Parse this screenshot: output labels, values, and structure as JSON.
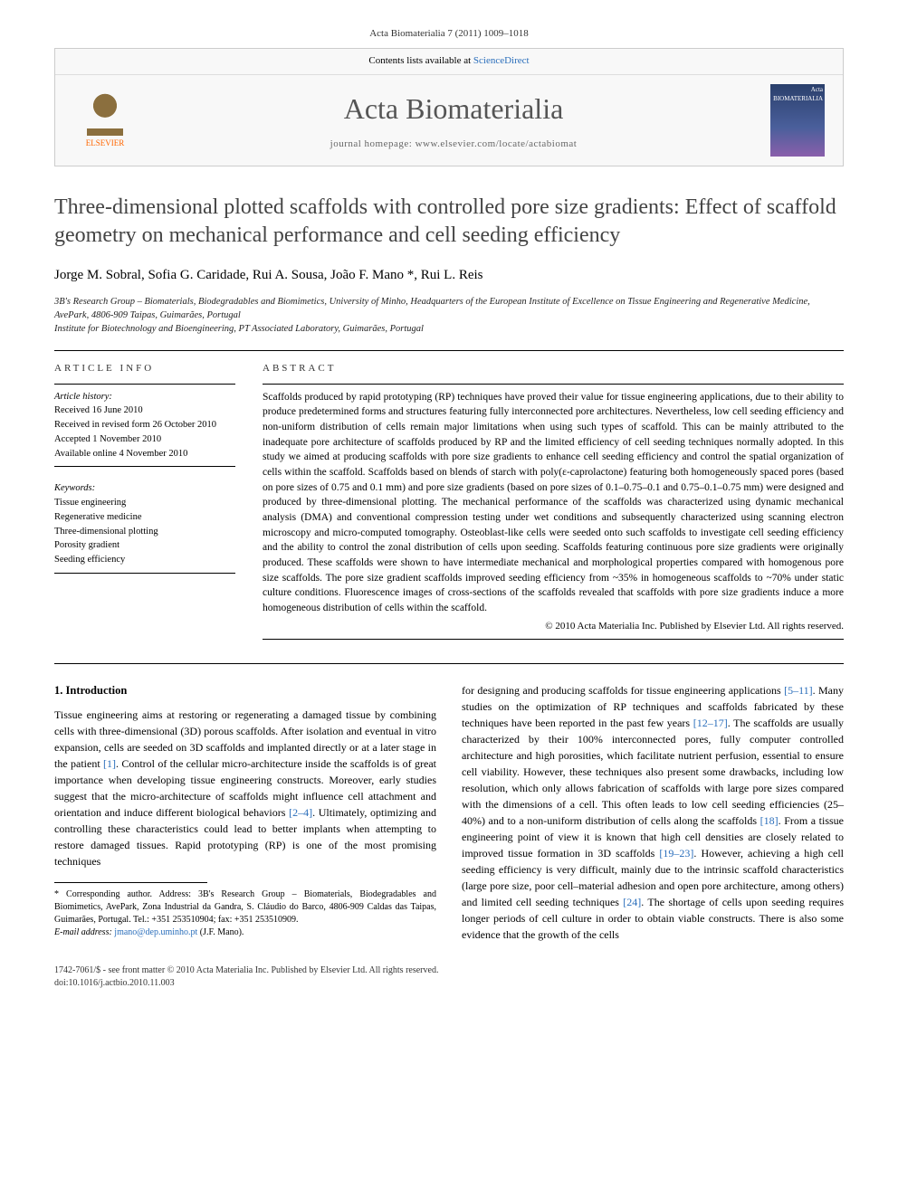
{
  "citation": "Acta Biomaterialia 7 (2011) 1009–1018",
  "header": {
    "contents_available": "Contents lists available at ",
    "sciencedirect": "ScienceDirect",
    "publisher_name": "ELSEVIER",
    "journal_name": "Acta Biomaterialia",
    "homepage_label": "journal homepage: ",
    "homepage_url": "www.elsevier.com/locate/actabiomat",
    "cover_text": "Acta BIOMATERIALIA"
  },
  "title": "Three-dimensional plotted scaffolds with controlled pore size gradients: Effect of scaffold geometry on mechanical performance and cell seeding efficiency",
  "authors": "Jorge M. Sobral, Sofia G. Caridade, Rui A. Sousa, João F. Mano *, Rui L. Reis",
  "affiliations": [
    "3B's Research Group – Biomaterials, Biodegradables and Biomimetics, University of Minho, Headquarters of the European Institute of Excellence on Tissue Engineering and Regenerative Medicine, AvePark, 4806-909 Taipas, Guimarães, Portugal",
    "Institute for Biotechnology and Bioengineering, PT Associated Laboratory, Guimarães, Portugal"
  ],
  "article_info": {
    "label": "ARTICLE INFO",
    "history_label": "Article history:",
    "history": [
      "Received 16 June 2010",
      "Received in revised form 26 October 2010",
      "Accepted 1 November 2010",
      "Available online 4 November 2010"
    ],
    "keywords_label": "Keywords:",
    "keywords": [
      "Tissue engineering",
      "Regenerative medicine",
      "Three-dimensional plotting",
      "Porosity gradient",
      "Seeding efficiency"
    ]
  },
  "abstract": {
    "label": "ABSTRACT",
    "text": "Scaffolds produced by rapid prototyping (RP) techniques have proved their value for tissue engineering applications, due to their ability to produce predetermined forms and structures featuring fully interconnected pore architectures. Nevertheless, low cell seeding efficiency and non-uniform distribution of cells remain major limitations when using such types of scaffold. This can be mainly attributed to the inadequate pore architecture of scaffolds produced by RP and the limited efficiency of cell seeding techniques normally adopted. In this study we aimed at producing scaffolds with pore size gradients to enhance cell seeding efficiency and control the spatial organization of cells within the scaffold. Scaffolds based on blends of starch with poly(ε-caprolactone) featuring both homogeneously spaced pores (based on pore sizes of 0.75 and 0.1 mm) and pore size gradients (based on pore sizes of 0.1–0.75–0.1 and 0.75–0.1–0.75 mm) were designed and produced by three-dimensional plotting. The mechanical performance of the scaffolds was characterized using dynamic mechanical analysis (DMA) and conventional compression testing under wet conditions and subsequently characterized using scanning electron microscopy and micro-computed tomography. Osteoblast-like cells were seeded onto such scaffolds to investigate cell seeding efficiency and the ability to control the zonal distribution of cells upon seeding. Scaffolds featuring continuous pore size gradients were originally produced. These scaffolds were shown to have intermediate mechanical and morphological properties compared with homogenous pore size scaffolds. The pore size gradient scaffolds improved seeding efficiency from ~35% in homogeneous scaffolds to ~70% under static culture conditions. Fluorescence images of cross-sections of the scaffolds revealed that scaffolds with pore size gradients induce a more homogeneous distribution of cells within the scaffold.",
    "copyright": "© 2010 Acta Materialia Inc. Published by Elsevier Ltd. All rights reserved."
  },
  "body": {
    "section_heading": "1. Introduction",
    "col1": "Tissue engineering aims at restoring or regenerating a damaged tissue by combining cells with three-dimensional (3D) porous scaffolds. After isolation and eventual in vitro expansion, cells are seeded on 3D scaffolds and implanted directly or at a later stage in the patient [1]. Control of the cellular micro-architecture inside the scaffolds is of great importance when developing tissue engineering constructs. Moreover, early studies suggest that the micro-architecture of scaffolds might influence cell attachment and orientation and induce different biological behaviors [2–4]. Ultimately, optimizing and controlling these characteristics could lead to better implants when attempting to restore damaged tissues. Rapid prototyping (RP) is one of the most promising techniques",
    "col2": "for designing and producing scaffolds for tissue engineering applications [5–11]. Many studies on the optimization of RP techniques and scaffolds fabricated by these techniques have been reported in the past few years [12–17]. The scaffolds are usually characterized by their 100% interconnected pores, fully computer controlled architecture and high porosities, which facilitate nutrient perfusion, essential to ensure cell viability. However, these techniques also present some drawbacks, including low resolution, which only allows fabrication of scaffolds with large pore sizes compared with the dimensions of a cell. This often leads to low cell seeding efficiencies (25–40%) and to a non-uniform distribution of cells along the scaffolds [18]. From a tissue engineering point of view it is known that high cell densities are closely related to improved tissue formation in 3D scaffolds [19–23]. However, achieving a high cell seeding efficiency is very difficult, mainly due to the intrinsic scaffold characteristics (large pore size, poor cell–material adhesion and open pore architecture, among others) and limited cell seeding techniques [24]. The shortage of cells upon seeding requires longer periods of cell culture in order to obtain viable constructs. There is also some evidence that the growth of the cells"
  },
  "footnote": {
    "corresp": "* Corresponding author. Address: 3B's Research Group – Biomaterials, Biodegradables and Biomimetics, AvePark, Zona Industrial da Gandra, S. Cláudio do Barco, 4806-909 Caldas das Taipas, Guimarães, Portugal. Tel.: +351 253510904; fax: +351 253510909.",
    "email_label": "E-mail address: ",
    "email": "jmano@dep.uminho.pt",
    "email_name": " (J.F. Mano)."
  },
  "footer": {
    "line1": "1742-7061/$ - see front matter © 2010 Acta Materialia Inc. Published by Elsevier Ltd. All rights reserved.",
    "line2": "doi:10.1016/j.actbio.2010.11.003"
  },
  "refs": {
    "r1": "[1]",
    "r2_4": "[2–4]",
    "r5_11": "[5–11]",
    "r12_17": "[12–17]",
    "r18": "[18]",
    "r19_23": "[19–23]",
    "r24": "[24]"
  }
}
